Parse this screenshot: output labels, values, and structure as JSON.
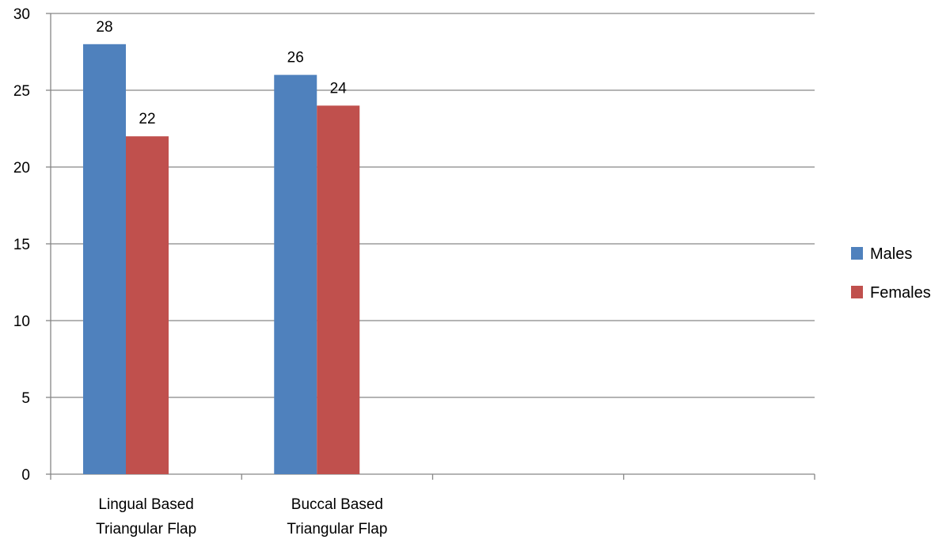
{
  "chart_data": {
    "type": "bar",
    "categories": [
      [
        "Lingual Based",
        "Triangular Flap"
      ],
      [
        "Buccal Based",
        "Triangular Flap"
      ],
      [
        "",
        ""
      ],
      [
        "",
        ""
      ]
    ],
    "series": [
      {
        "name": "Males",
        "values": [
          28,
          26,
          null,
          null
        ],
        "color": "#4F81BD"
      },
      {
        "name": "Females",
        "values": [
          22,
          24,
          null,
          null
        ],
        "color": "#C0504D"
      }
    ],
    "yticks": [
      0,
      5,
      10,
      15,
      20,
      25,
      30
    ],
    "ylim": [
      0,
      30
    ],
    "grid": true,
    "legend": "right",
    "title": "",
    "xlabel": "",
    "ylabel": ""
  }
}
